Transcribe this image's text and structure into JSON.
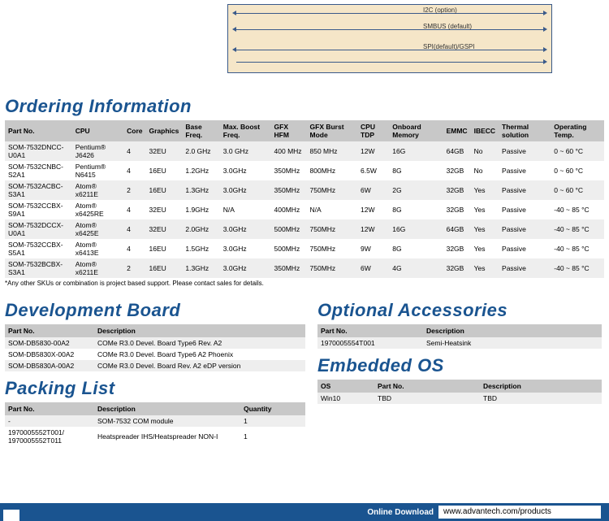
{
  "diagram": {
    "labels": [
      "I2C (option)",
      "SMBUS (default)",
      "SPI(default)/GSPI"
    ]
  },
  "ordering": {
    "title": "Ordering Information",
    "columns": [
      "Part No.",
      "CPU",
      "Core",
      "Graphics",
      "Base Freq.",
      "Max. Boost Freq.",
      "GFX HFM",
      "GFX Burst Mode",
      "CPU TDP",
      "Onboard Memory",
      "EMMC",
      "IBECC",
      "Thermal solution",
      "Operating Temp."
    ],
    "rows": [
      [
        "SOM-7532DNCC-U0A1",
        "Pentium® J6426",
        "4",
        "32EU",
        "2.0 GHz",
        "3.0 GHz",
        "400 MHz",
        "850 MHz",
        "12W",
        "16G",
        "64GB",
        "No",
        "Passive",
        "0 ~ 60 °C"
      ],
      [
        "SOM-7532CNBC-S2A1",
        "Pentium® N6415",
        "4",
        "16EU",
        "1.2GHz",
        "3.0GHz",
        "350MHz",
        "800MHz",
        "6.5W",
        "8G",
        "32GB",
        "No",
        "Passive",
        "0 ~ 60 °C"
      ],
      [
        "SOM-7532ACBC-S3A1",
        "Atom® x6211E",
        "2",
        "16EU",
        "1.3GHz",
        "3.0GHz",
        "350MHz",
        "750MHz",
        "6W",
        "2G",
        "32GB",
        "Yes",
        "Passive",
        "0 ~ 60 °C"
      ],
      [
        "SOM-7532CCBX-S9A1",
        "Atom® x6425RE",
        "4",
        "32EU",
        "1.9GHz",
        "N/A",
        "400MHz",
        "N/A",
        "12W",
        "8G",
        "32GB",
        "Yes",
        "Passive",
        "-40 ~ 85 °C"
      ],
      [
        "SOM-7532DCCX-U0A1",
        "Atom® x6425E",
        "4",
        "32EU",
        "2.0GHz",
        "3.0GHz",
        "500MHz",
        "750MHz",
        "12W",
        "16G",
        "64GB",
        "Yes",
        "Passive",
        "-40 ~ 85 °C"
      ],
      [
        "SOM-7532CCBX-S5A1",
        "Atom® x6413E",
        "4",
        "16EU",
        "1.5GHz",
        "3.0GHz",
        "500MHz",
        "750MHz",
        "9W",
        "8G",
        "32GB",
        "Yes",
        "Passive",
        "-40 ~ 85 °C"
      ],
      [
        "SOM-7532BCBX-S3A1",
        "Atom® x6211E",
        "2",
        "16EU",
        "1.3GHz",
        "3.0GHz",
        "350MHz",
        "750MHz",
        "6W",
        "4G",
        "32GB",
        "Yes",
        "Passive",
        "-40 ~ 85 °C"
      ]
    ],
    "footnote": "*Any other SKUs or combination is project based support. Please contact sales for details."
  },
  "devboard": {
    "title": "Development Board",
    "columns": [
      "Part No.",
      "Description"
    ],
    "rows": [
      [
        "SOM-DB5830-00A2",
        "COMe R3.0 Devel. Board Type6 Rev. A2"
      ],
      [
        "SOM-DB5830X-00A2",
        "COMe R3.0 Devel. Board Type6 A2 Phoenix"
      ],
      [
        "SOM-DB5830A-00A2",
        "COMe R3.0 Devel. Board Rev. A2 eDP version"
      ]
    ]
  },
  "packing": {
    "title": "Packing List",
    "columns": [
      "Part No.",
      "Description",
      "Quantity"
    ],
    "rows": [
      [
        "-",
        "SOM-7532 COM module",
        "1"
      ],
      [
        "1970005552T001/\n1970005552T011",
        "Heatspreader IHS/Heatspreader NON-I",
        "1"
      ]
    ]
  },
  "accessories": {
    "title": "Optional Accessories",
    "columns": [
      "Part No.",
      "Description"
    ],
    "rows": [
      [
        "1970005554T001",
        "Semi-Heatsink"
      ]
    ]
  },
  "embedded": {
    "title": "Embedded OS",
    "columns": [
      "OS",
      "Part No.",
      "Description"
    ],
    "rows": [
      [
        "Win10",
        "TBD",
        "TBD"
      ]
    ]
  },
  "footer": {
    "label": "Online Download",
    "url": "www.advantech.com/products"
  }
}
